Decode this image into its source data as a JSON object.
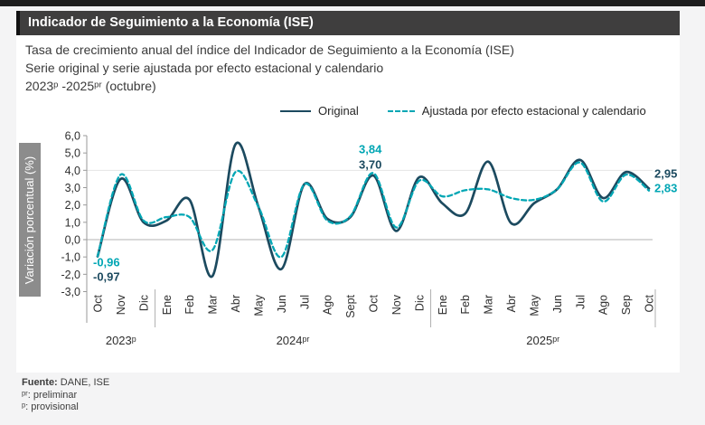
{
  "header": {
    "title": "Indicador de Seguimiento a la Economía (ISE)",
    "bar_color": "#3f3e3e",
    "accent_color": "#121212"
  },
  "subtitle": {
    "line1": "Tasa de crecimiento anual del índice del Indicador de Seguimiento a la Economía (ISE)",
    "line2": "Serie original y serie ajustada por efecto estacional y calendario",
    "line3": "2023ᵖ -2025ᵖʳ (octubre)"
  },
  "legend": {
    "original": "Original",
    "adjusted": "Ajustada por efecto estacional y calendario"
  },
  "footer": {
    "source_label": "Fuente:",
    "source_value": "DANE, ISE",
    "note_preliminar": "ᵖʳ: preliminar",
    "note_provisional": "ᵖ: provisional"
  },
  "chart_data": {
    "type": "line",
    "ylabel": "Variación porcentual (%)",
    "ylim": [
      -3,
      6
    ],
    "grid": "zero-line",
    "legend_position": "top",
    "gridlines": [
      {
        "value": 4,
        "color": "#e4e4e4"
      },
      {
        "value": 0,
        "color": "#b3b3b3"
      }
    ],
    "yticks": [
      {
        "value": 6,
        "label": "6,0"
      },
      {
        "value": 5,
        "label": "5,0"
      },
      {
        "value": 4,
        "label": "4,0"
      },
      {
        "value": 3,
        "label": "3,0"
      },
      {
        "value": 2,
        "label": "2,0"
      },
      {
        "value": 1,
        "label": "1,0"
      },
      {
        "value": 0,
        "label": "0,0"
      },
      {
        "value": -1,
        "label": "-1,0"
      },
      {
        "value": -2,
        "label": "-2,0"
      },
      {
        "value": -3,
        "label": "-3,0"
      }
    ],
    "x_months": [
      "Oct",
      "Nov",
      "Dic",
      "Ene",
      "Feb",
      "Mar",
      "Abr",
      "May",
      "Jun",
      "Jul",
      "Ago",
      "Sept",
      "Oct",
      "Nov",
      "Dic",
      "Ene",
      "Feb",
      "Mar",
      "Abr",
      "May",
      "Jun",
      "Jul",
      "Ago",
      "Sep",
      "Oct"
    ],
    "year_groups": [
      {
        "label": "2023ᵖ",
        "from": 0,
        "to": 2
      },
      {
        "label": "2024ᵖʳ",
        "from": 3,
        "to": 14
      },
      {
        "label": "2025ᵖʳ",
        "from": 15,
        "to": 24
      }
    ],
    "series": [
      {
        "name": "Original",
        "color": "#1c4a5f",
        "style": "solid",
        "values": [
          -0.97,
          3.5,
          1.0,
          1.1,
          2.3,
          -2.1,
          5.5,
          1.9,
          -1.7,
          3.2,
          1.2,
          1.3,
          3.7,
          0.5,
          3.6,
          2.1,
          1.5,
          4.5,
          0.95,
          2.1,
          2.9,
          4.6,
          2.4,
          3.9,
          2.95
        ]
      },
      {
        "name": "Ajustada por efecto estacional y calendario",
        "color": "#00a6b4",
        "style": "dashed",
        "values": [
          -0.96,
          3.75,
          1.1,
          1.3,
          1.3,
          -0.6,
          3.9,
          1.9,
          -1.0,
          3.2,
          1.1,
          1.35,
          3.84,
          0.7,
          3.4,
          2.5,
          2.85,
          2.9,
          2.4,
          2.3,
          2.9,
          4.45,
          2.2,
          3.75,
          2.83
        ]
      }
    ],
    "annotations": [
      {
        "index": 0,
        "position": "start",
        "lines": [
          {
            "series": "ajustada",
            "text": "-0,96"
          },
          {
            "series": "original",
            "text": "-0,97"
          }
        ]
      },
      {
        "index": 12,
        "position": "above",
        "lines": [
          {
            "series": "ajustada",
            "text": "3,84"
          },
          {
            "series": "original",
            "text": "3,70"
          }
        ]
      },
      {
        "index": 24,
        "position": "right",
        "lines": [
          {
            "series": "original",
            "text": "2,95"
          },
          {
            "series": "ajustada",
            "text": "2,83"
          }
        ]
      }
    ]
  }
}
